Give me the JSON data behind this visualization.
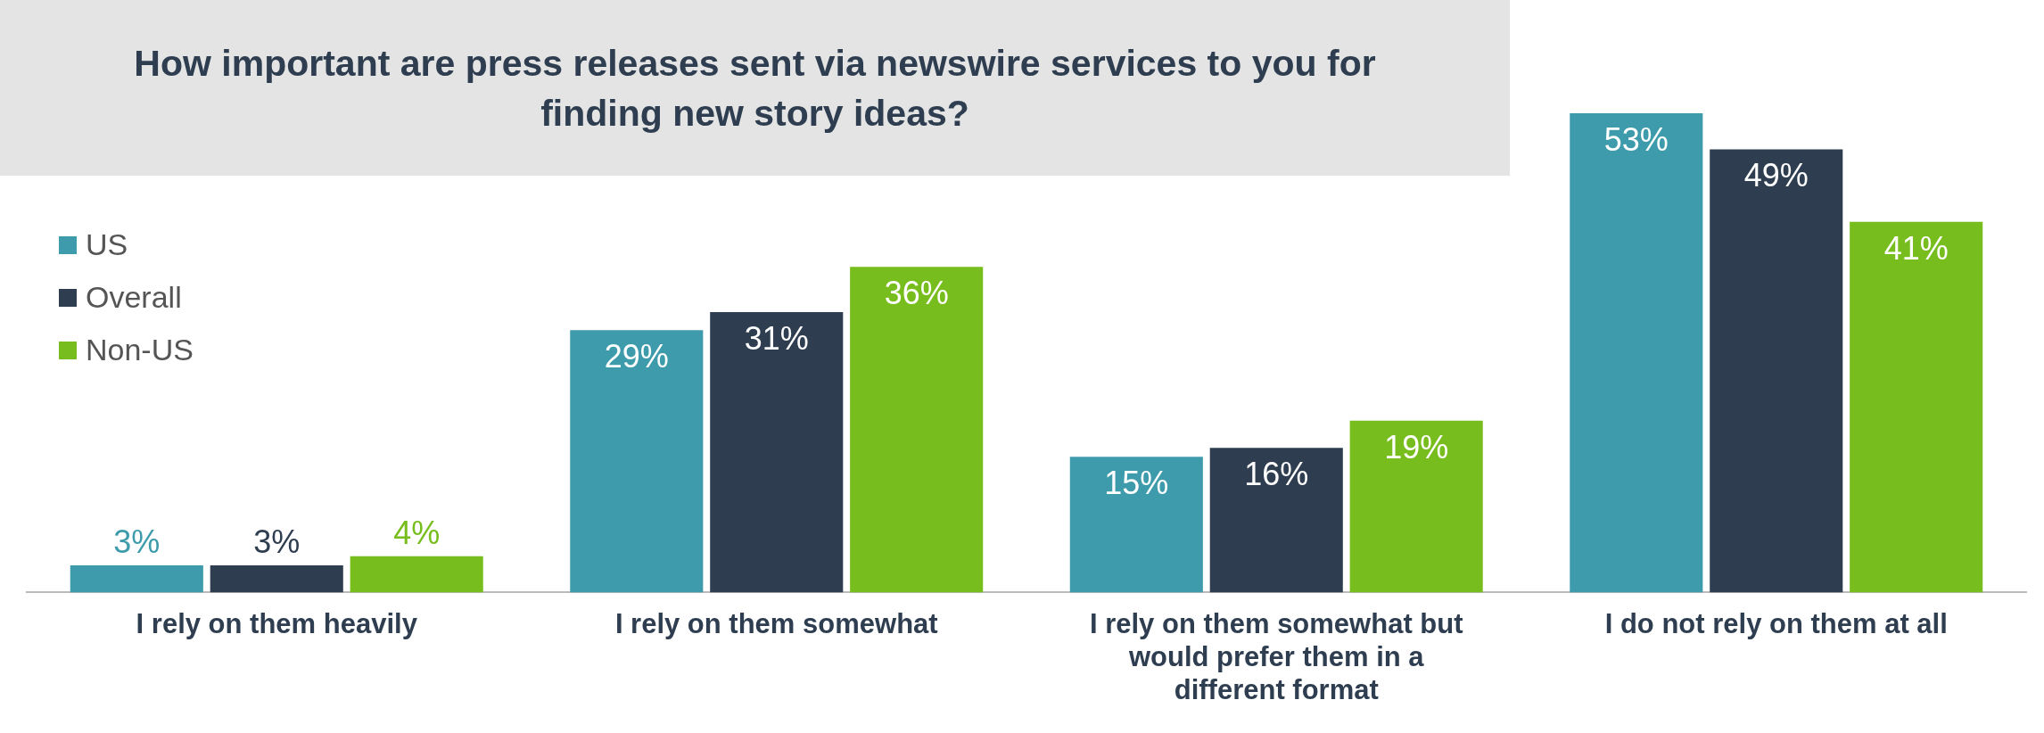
{
  "chart_data": {
    "type": "bar",
    "title": "How important are press releases sent via newswire services to you for finding new story ideas?",
    "categories": [
      "I rely on them heavily",
      "I rely on them somewhat",
      "I rely on them somewhat but would prefer them in a different format",
      "I do not rely on them at all"
    ],
    "series": [
      {
        "name": "US",
        "color": "#3d9bab",
        "values": [
          3,
          29,
          15,
          53
        ],
        "value_labels": [
          "3%",
          "29%",
          "15%",
          "53%"
        ]
      },
      {
        "name": "Overall",
        "color": "#2e3e50",
        "values": [
          3,
          31,
          16,
          49
        ],
        "value_labels": [
          "3%",
          "31%",
          "16%",
          "49%"
        ]
      },
      {
        "name": "Non-US",
        "color": "#77bd1d",
        "values": [
          4,
          36,
          19,
          41
        ],
        "value_labels": [
          "4%",
          "36%",
          "19%",
          "41%"
        ]
      }
    ],
    "legend": "top left"
  }
}
